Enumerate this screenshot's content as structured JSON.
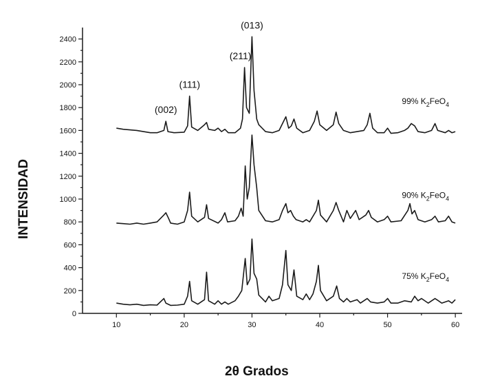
{
  "chart_data": {
    "type": "line",
    "xlabel": "2θ Grados",
    "ylabel": "INTENSIDAD",
    "xlim": [
      5,
      61
    ],
    "ylim": [
      0,
      2500
    ],
    "x_ticks": [
      10,
      20,
      30,
      40,
      50,
      60
    ],
    "x_tick_labels": [
      "10",
      "20",
      "30",
      "40",
      "50",
      "60"
    ],
    "y_ticks": [
      0,
      200,
      400,
      600,
      800,
      1000,
      1200,
      1400,
      1600,
      1800,
      2000,
      2200,
      2400
    ],
    "y_tick_labels": [
      "0",
      "200",
      "400",
      "600",
      "800",
      "1000",
      "1200",
      "1400",
      "1600",
      "1800",
      "2000",
      "2200",
      "2400"
    ],
    "grid": false,
    "line_color": "#1a1a1a",
    "series": [
      {
        "label_text": "75% K",
        "label_sub": "2",
        "label_tail": "FeO",
        "label_sub2": "4",
        "baseline": 70,
        "points": [
          [
            10,
            90
          ],
          [
            11,
            80
          ],
          [
            12,
            75
          ],
          [
            13,
            80
          ],
          [
            14,
            70
          ],
          [
            15,
            75
          ],
          [
            16,
            72
          ],
          [
            17,
            130
          ],
          [
            17.3,
            90
          ],
          [
            18,
            70
          ],
          [
            19,
            72
          ],
          [
            20,
            80
          ],
          [
            20.5,
            150
          ],
          [
            20.8,
            280
          ],
          [
            21.1,
            110
          ],
          [
            22,
            80
          ],
          [
            23,
            120
          ],
          [
            23.3,
            360
          ],
          [
            23.6,
            110
          ],
          [
            24.5,
            80
          ],
          [
            25,
            110
          ],
          [
            25.5,
            80
          ],
          [
            26,
            100
          ],
          [
            26.5,
            80
          ],
          [
            27.5,
            110
          ],
          [
            28,
            150
          ],
          [
            28.5,
            200
          ],
          [
            29,
            480
          ],
          [
            29.3,
            250
          ],
          [
            29.7,
            300
          ],
          [
            30,
            650
          ],
          [
            30.3,
            350
          ],
          [
            30.7,
            300
          ],
          [
            31,
            160
          ],
          [
            32,
            100
          ],
          [
            32.5,
            150
          ],
          [
            33,
            110
          ],
          [
            34,
            130
          ],
          [
            34.5,
            250
          ],
          [
            35,
            550
          ],
          [
            35.3,
            250
          ],
          [
            35.8,
            200
          ],
          [
            36.2,
            380
          ],
          [
            36.6,
            150
          ],
          [
            37.5,
            120
          ],
          [
            38,
            170
          ],
          [
            38.5,
            120
          ],
          [
            39,
            170
          ],
          [
            39.5,
            280
          ],
          [
            39.8,
            420
          ],
          [
            40.1,
            200
          ],
          [
            41,
            110
          ],
          [
            42,
            150
          ],
          [
            42.5,
            240
          ],
          [
            42.9,
            130
          ],
          [
            43.5,
            100
          ],
          [
            44,
            130
          ],
          [
            44.5,
            100
          ],
          [
            45.5,
            120
          ],
          [
            46,
            90
          ],
          [
            47,
            130
          ],
          [
            47.5,
            100
          ],
          [
            48.5,
            90
          ],
          [
            49.5,
            100
          ],
          [
            50,
            130
          ],
          [
            50.5,
            90
          ],
          [
            51.5,
            90
          ],
          [
            52.5,
            110
          ],
          [
            53.5,
            100
          ],
          [
            54,
            150
          ],
          [
            54.5,
            110
          ],
          [
            55,
            130
          ],
          [
            56,
            90
          ],
          [
            57,
            130
          ],
          [
            57.5,
            110
          ],
          [
            58,
            90
          ],
          [
            59,
            110
          ],
          [
            59.5,
            90
          ],
          [
            60,
            120
          ]
        ]
      },
      {
        "label_text": "90% K",
        "label_sub": "2",
        "label_tail": "FeO",
        "label_sub2": "4",
        "baseline": 780,
        "points": [
          [
            10,
            790
          ],
          [
            11,
            785
          ],
          [
            12,
            780
          ],
          [
            13,
            790
          ],
          [
            14,
            780
          ],
          [
            15,
            790
          ],
          [
            16,
            800
          ],
          [
            17,
            860
          ],
          [
            17.3,
            880
          ],
          [
            17.7,
            830
          ],
          [
            18,
            790
          ],
          [
            19,
            780
          ],
          [
            20,
            800
          ],
          [
            20.5,
            900
          ],
          [
            20.8,
            1060
          ],
          [
            21.1,
            850
          ],
          [
            22,
            800
          ],
          [
            23,
            840
          ],
          [
            23.3,
            950
          ],
          [
            23.6,
            830
          ],
          [
            25,
            790
          ],
          [
            25.5,
            820
          ],
          [
            26,
            880
          ],
          [
            26.4,
            800
          ],
          [
            27.5,
            810
          ],
          [
            28,
            850
          ],
          [
            28.4,
            920
          ],
          [
            28.7,
            850
          ],
          [
            29,
            1290
          ],
          [
            29.3,
            1000
          ],
          [
            29.6,
            1100
          ],
          [
            30,
            1560
          ],
          [
            30.3,
            1300
          ],
          [
            30.7,
            1100
          ],
          [
            31,
            900
          ],
          [
            32,
            810
          ],
          [
            33,
            800
          ],
          [
            34,
            820
          ],
          [
            34.5,
            900
          ],
          [
            35,
            960
          ],
          [
            35.3,
            880
          ],
          [
            35.7,
            900
          ],
          [
            36.1,
            850
          ],
          [
            36.5,
            820
          ],
          [
            37.5,
            800
          ],
          [
            38,
            820
          ],
          [
            38.5,
            800
          ],
          [
            39.5,
            900
          ],
          [
            39.8,
            990
          ],
          [
            40.1,
            860
          ],
          [
            41,
            800
          ],
          [
            42,
            900
          ],
          [
            42.4,
            970
          ],
          [
            42.8,
            900
          ],
          [
            43.5,
            800
          ],
          [
            44,
            900
          ],
          [
            44.5,
            830
          ],
          [
            45.3,
            900
          ],
          [
            45.8,
            820
          ],
          [
            46.8,
            860
          ],
          [
            47.2,
            900
          ],
          [
            47.6,
            840
          ],
          [
            48.5,
            800
          ],
          [
            49.5,
            820
          ],
          [
            50,
            850
          ],
          [
            50.5,
            800
          ],
          [
            52,
            810
          ],
          [
            53,
            900
          ],
          [
            53.3,
            960
          ],
          [
            53.6,
            870
          ],
          [
            54,
            900
          ],
          [
            54.5,
            820
          ],
          [
            55.5,
            800
          ],
          [
            56.5,
            820
          ],
          [
            57,
            850
          ],
          [
            57.5,
            800
          ],
          [
            58.5,
            810
          ],
          [
            59,
            850
          ],
          [
            59.5,
            800
          ],
          [
            60,
            790
          ]
        ]
      },
      {
        "label_text": "99% K",
        "label_sub": "2",
        "label_tail": "FeO",
        "label_sub2": "4",
        "baseline": 1600,
        "points": [
          [
            10,
            1620
          ],
          [
            11,
            1610
          ],
          [
            12,
            1605
          ],
          [
            13,
            1600
          ],
          [
            14,
            1590
          ],
          [
            15,
            1580
          ],
          [
            16,
            1580
          ],
          [
            17,
            1600
          ],
          [
            17.3,
            1680
          ],
          [
            17.6,
            1590
          ],
          [
            18.5,
            1580
          ],
          [
            20,
            1585
          ],
          [
            20.5,
            1640
          ],
          [
            20.8,
            1900
          ],
          [
            21.1,
            1630
          ],
          [
            22,
            1600
          ],
          [
            23,
            1650
          ],
          [
            23.3,
            1670
          ],
          [
            23.6,
            1610
          ],
          [
            24.5,
            1600
          ],
          [
            25,
            1620
          ],
          [
            25.5,
            1590
          ],
          [
            26,
            1610
          ],
          [
            26.5,
            1580
          ],
          [
            27.5,
            1580
          ],
          [
            28.3,
            1620
          ],
          [
            28.6,
            1700
          ],
          [
            28.9,
            2150
          ],
          [
            29.2,
            1800
          ],
          [
            29.6,
            1750
          ],
          [
            30,
            2420
          ],
          [
            30.3,
            1950
          ],
          [
            30.7,
            1700
          ],
          [
            31,
            1650
          ],
          [
            32,
            1590
          ],
          [
            33,
            1580
          ],
          [
            34,
            1600
          ],
          [
            34.5,
            1660
          ],
          [
            35,
            1720
          ],
          [
            35.4,
            1620
          ],
          [
            35.8,
            1640
          ],
          [
            36.2,
            1700
          ],
          [
            36.6,
            1620
          ],
          [
            37.5,
            1580
          ],
          [
            38.5,
            1600
          ],
          [
            39.2,
            1680
          ],
          [
            39.6,
            1770
          ],
          [
            40,
            1650
          ],
          [
            41,
            1600
          ],
          [
            42,
            1650
          ],
          [
            42.4,
            1760
          ],
          [
            42.8,
            1660
          ],
          [
            43.5,
            1600
          ],
          [
            44.5,
            1580
          ],
          [
            45.5,
            1590
          ],
          [
            46.5,
            1600
          ],
          [
            47,
            1650
          ],
          [
            47.4,
            1750
          ],
          [
            47.8,
            1620
          ],
          [
            48.5,
            1580
          ],
          [
            49.5,
            1580
          ],
          [
            50,
            1620
          ],
          [
            50.5,
            1575
          ],
          [
            51.5,
            1580
          ],
          [
            52.5,
            1600
          ],
          [
            53,
            1620
          ],
          [
            53.5,
            1660
          ],
          [
            54,
            1640
          ],
          [
            54.5,
            1590
          ],
          [
            55.5,
            1580
          ],
          [
            56.5,
            1600
          ],
          [
            57,
            1660
          ],
          [
            57.4,
            1600
          ],
          [
            58.5,
            1580
          ],
          [
            59,
            1600
          ],
          [
            59.5,
            1580
          ],
          [
            60,
            1590
          ]
        ]
      }
    ],
    "peak_annotations": [
      {
        "label": "(002)",
        "x": 17.3,
        "y": 1680
      },
      {
        "label": "(111)",
        "x": 20.8,
        "y": 1900
      },
      {
        "label": "(211)",
        "x": 28.9,
        "y": 2150
      },
      {
        "label": "(013)",
        "x": 30.0,
        "y": 2420
      }
    ]
  }
}
